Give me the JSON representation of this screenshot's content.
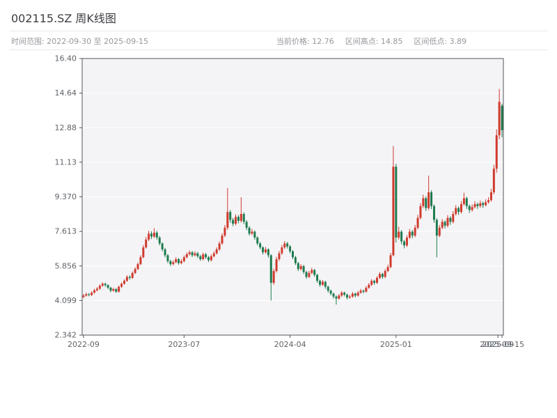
{
  "header": {
    "title": "002115.SZ 周K线图",
    "time_range": "时间范围: 2022-09-30 至 2025-09-15",
    "stats": [
      "当前价格: 12.76",
      "区间高点: 14.85",
      "区间低点: 3.89"
    ],
    "current_price": 12.76,
    "range_high": 14.85,
    "range_low": 3.89
  },
  "chart_data": {
    "type": "candlestick",
    "symbol": "002115.SZ",
    "interval": "weekly",
    "title": "002115.SZ 周K线图",
    "time_range": [
      "2022-09-30",
      "2025-09-15"
    ],
    "ylim": [
      2.342,
      16.4
    ],
    "y_ticks": [
      "16.40",
      "14.64",
      "12.88",
      "11.13",
      "9.370",
      "7.613",
      "5.856",
      "4.099",
      "2.342"
    ],
    "y_tick_values": [
      16.4,
      14.64,
      12.88,
      11.13,
      9.37,
      7.613,
      5.856,
      4.099,
      2.342
    ],
    "x_ticks": [
      {
        "label": "2022-09",
        "index": 0
      },
      {
        "label": "2023-07",
        "index": 37
      },
      {
        "label": "2024-04",
        "index": 76
      },
      {
        "label": "2025-01",
        "index": 115
      },
      {
        "label": "2025-09",
        "index": 152.5
      }
    ],
    "end_date_label": {
      "label": "2025-09-15",
      "index": 154
    },
    "grid": true,
    "colors": {
      "up": "#cf3a2d",
      "down": "#1e7b4f"
    },
    "candles": [
      [
        4.28,
        4.43,
        4.22,
        4.35
      ],
      [
        4.35,
        4.5,
        4.3,
        4.42
      ],
      [
        4.42,
        4.48,
        4.31,
        4.38
      ],
      [
        4.38,
        4.57,
        4.33,
        4.5
      ],
      [
        4.5,
        4.7,
        4.45,
        4.62
      ],
      [
        4.62,
        4.78,
        4.56,
        4.7
      ],
      [
        4.7,
        4.92,
        4.64,
        4.85
      ],
      [
        4.85,
        5.03,
        4.8,
        4.95
      ],
      [
        4.95,
        5.01,
        4.8,
        4.88
      ],
      [
        4.88,
        4.93,
        4.68,
        4.75
      ],
      [
        4.75,
        4.8,
        4.52,
        4.6
      ],
      [
        4.6,
        4.75,
        4.55,
        4.68
      ],
      [
        4.68,
        4.73,
        4.48,
        4.55
      ],
      [
        4.55,
        4.87,
        4.5,
        4.8
      ],
      [
        4.8,
        5.02,
        4.74,
        4.95
      ],
      [
        4.95,
        5.18,
        4.9,
        5.1
      ],
      [
        5.1,
        5.38,
        5.05,
        5.3
      ],
      [
        5.3,
        5.38,
        5.16,
        5.25
      ],
      [
        5.25,
        5.58,
        5.2,
        5.5
      ],
      [
        5.5,
        5.79,
        5.44,
        5.7
      ],
      [
        5.7,
        6.04,
        5.65,
        5.95
      ],
      [
        5.95,
        6.4,
        5.9,
        6.3
      ],
      [
        6.3,
        6.92,
        6.25,
        6.8
      ],
      [
        6.8,
        7.33,
        6.74,
        7.2
      ],
      [
        7.2,
        7.65,
        7.12,
        7.5
      ],
      [
        7.5,
        7.62,
        7.22,
        7.35
      ],
      [
        7.35,
        7.78,
        7.28,
        7.55
      ],
      [
        7.55,
        7.64,
        7.18,
        7.3
      ],
      [
        7.3,
        7.38,
        6.9,
        7.0
      ],
      [
        7.0,
        7.06,
        6.6,
        6.7
      ],
      [
        6.7,
        6.77,
        6.3,
        6.4
      ],
      [
        6.4,
        6.46,
        6.0,
        6.1
      ],
      [
        6.1,
        6.17,
        5.85,
        5.95
      ],
      [
        5.95,
        6.14,
        5.88,
        6.05
      ],
      [
        6.05,
        6.3,
        5.99,
        6.2
      ],
      [
        6.2,
        6.26,
        5.92,
        6.0
      ],
      [
        6.0,
        6.2,
        5.94,
        6.1
      ],
      [
        6.1,
        6.39,
        6.04,
        6.3
      ],
      [
        6.3,
        6.54,
        6.24,
        6.45
      ],
      [
        6.45,
        6.65,
        6.39,
        6.55
      ],
      [
        6.55,
        6.62,
        6.31,
        6.4
      ],
      [
        6.4,
        6.6,
        6.34,
        6.5
      ],
      [
        6.5,
        6.57,
        6.26,
        6.35
      ],
      [
        6.35,
        6.42,
        6.11,
        6.2
      ],
      [
        6.2,
        6.53,
        6.14,
        6.45
      ],
      [
        6.45,
        6.52,
        6.21,
        6.3
      ],
      [
        6.3,
        6.36,
        6.06,
        6.15
      ],
      [
        6.15,
        6.44,
        6.09,
        6.35
      ],
      [
        6.35,
        6.6,
        6.29,
        6.5
      ],
      [
        6.5,
        6.8,
        6.44,
        6.7
      ],
      [
        6.7,
        7.1,
        6.63,
        7.0
      ],
      [
        7.0,
        7.52,
        6.93,
        7.4
      ],
      [
        7.4,
        7.94,
        7.32,
        7.8
      ],
      [
        7.8,
        9.82,
        7.7,
        8.6
      ],
      [
        8.6,
        8.7,
        8.05,
        8.2
      ],
      [
        8.2,
        8.3,
        7.88,
        8.0
      ],
      [
        8.0,
        8.48,
        7.92,
        8.35
      ],
      [
        8.35,
        8.44,
        8.02,
        8.15
      ],
      [
        8.15,
        9.35,
        8.06,
        8.5
      ],
      [
        8.5,
        8.58,
        7.98,
        8.1
      ],
      [
        8.1,
        8.18,
        7.68,
        7.8
      ],
      [
        7.8,
        7.88,
        7.4,
        7.5
      ],
      [
        7.5,
        7.74,
        7.42,
        7.6
      ],
      [
        7.6,
        7.66,
        7.18,
        7.3
      ],
      [
        7.3,
        7.37,
        6.9,
        7.0
      ],
      [
        7.0,
        7.08,
        6.7,
        6.8
      ],
      [
        6.8,
        6.86,
        6.44,
        6.55
      ],
      [
        6.55,
        6.82,
        6.48,
        6.7
      ],
      [
        6.7,
        6.76,
        6.28,
        6.4
      ],
      [
        6.4,
        6.45,
        4.1,
        5.0
      ],
      [
        5.0,
        5.72,
        4.9,
        5.6
      ],
      [
        5.6,
        6.32,
        5.52,
        6.2
      ],
      [
        6.2,
        6.62,
        6.12,
        6.5
      ],
      [
        6.5,
        6.92,
        6.42,
        6.8
      ],
      [
        6.8,
        7.12,
        6.72,
        7.0
      ],
      [
        7.0,
        7.08,
        6.74,
        6.85
      ],
      [
        6.85,
        6.92,
        6.5,
        6.6
      ],
      [
        6.6,
        6.66,
        6.2,
        6.3
      ],
      [
        6.3,
        6.37,
        5.9,
        6.0
      ],
      [
        6.0,
        6.06,
        5.6,
        5.7
      ],
      [
        5.7,
        5.95,
        5.63,
        5.85
      ],
      [
        5.85,
        5.91,
        5.45,
        5.55
      ],
      [
        5.55,
        5.61,
        5.2,
        5.3
      ],
      [
        5.3,
        5.6,
        5.24,
        5.5
      ],
      [
        5.5,
        5.76,
        5.44,
        5.65
      ],
      [
        5.65,
        5.71,
        5.3,
        5.4
      ],
      [
        5.4,
        5.46,
        5.0,
        5.1
      ],
      [
        5.1,
        5.16,
        4.8,
        4.9
      ],
      [
        4.9,
        5.14,
        4.84,
        5.05
      ],
      [
        5.05,
        5.1,
        4.7,
        4.8
      ],
      [
        4.8,
        4.85,
        4.5,
        4.6
      ],
      [
        4.6,
        4.66,
        4.36,
        4.45
      ],
      [
        4.45,
        4.5,
        4.2,
        4.3
      ],
      [
        4.3,
        4.36,
        3.89,
        4.2
      ],
      [
        4.2,
        4.43,
        4.14,
        4.35
      ],
      [
        4.35,
        4.58,
        4.29,
        4.5
      ],
      [
        4.5,
        4.55,
        4.31,
        4.4
      ],
      [
        4.4,
        4.45,
        4.16,
        4.25
      ],
      [
        4.25,
        4.39,
        4.19,
        4.3
      ],
      [
        4.3,
        4.53,
        4.24,
        4.45
      ],
      [
        4.45,
        4.5,
        4.26,
        4.35
      ],
      [
        4.35,
        4.58,
        4.3,
        4.5
      ],
      [
        4.5,
        4.69,
        4.44,
        4.6
      ],
      [
        4.6,
        4.66,
        4.46,
        4.55
      ],
      [
        4.55,
        4.83,
        4.5,
        4.75
      ],
      [
        4.75,
        4.99,
        4.69,
        4.9
      ],
      [
        4.9,
        5.19,
        4.84,
        5.1
      ],
      [
        5.1,
        5.16,
        4.9,
        5.0
      ],
      [
        5.0,
        5.34,
        4.94,
        5.25
      ],
      [
        5.25,
        5.55,
        5.19,
        5.45
      ],
      [
        5.45,
        5.51,
        5.2,
        5.3
      ],
      [
        5.3,
        5.7,
        5.24,
        5.6
      ],
      [
        5.6,
        5.92,
        5.54,
        5.8
      ],
      [
        5.8,
        6.52,
        5.74,
        6.4
      ],
      [
        6.4,
        11.95,
        6.35,
        10.9
      ],
      [
        10.9,
        11.05,
        7.05,
        7.3
      ],
      [
        7.3,
        7.85,
        7.2,
        7.6
      ],
      [
        7.6,
        7.68,
        6.95,
        7.1
      ],
      [
        7.1,
        7.18,
        6.75,
        6.9
      ],
      [
        6.9,
        7.42,
        6.82,
        7.3
      ],
      [
        7.3,
        7.74,
        7.22,
        7.6
      ],
      [
        7.6,
        7.68,
        7.26,
        7.4
      ],
      [
        7.4,
        7.94,
        7.32,
        7.8
      ],
      [
        7.8,
        8.45,
        7.72,
        8.3
      ],
      [
        8.3,
        9.05,
        8.22,
        8.9
      ],
      [
        8.9,
        9.48,
        8.8,
        9.3
      ],
      [
        9.3,
        9.4,
        8.65,
        8.8
      ],
      [
        8.8,
        10.45,
        8.7,
        9.6
      ],
      [
        9.6,
        9.7,
        8.75,
        8.9
      ],
      [
        8.9,
        8.98,
        8.05,
        8.2
      ],
      [
        8.2,
        8.28,
        6.3,
        7.4
      ],
      [
        7.4,
        7.94,
        7.32,
        7.8
      ],
      [
        7.8,
        8.24,
        7.72,
        8.1
      ],
      [
        8.1,
        8.18,
        7.76,
        7.9
      ],
      [
        7.9,
        8.44,
        7.82,
        8.3
      ],
      [
        8.3,
        8.38,
        7.95,
        8.1
      ],
      [
        8.1,
        8.64,
        8.02,
        8.5
      ],
      [
        8.5,
        8.95,
        8.42,
        8.8
      ],
      [
        8.8,
        8.88,
        8.45,
        8.6
      ],
      [
        8.6,
        9.15,
        8.52,
        9.0
      ],
      [
        9.0,
        9.58,
        8.92,
        9.3
      ],
      [
        9.3,
        9.38,
        8.76,
        8.9
      ],
      [
        8.9,
        8.98,
        8.55,
        8.7
      ],
      [
        8.7,
        8.98,
        8.62,
        8.85
      ],
      [
        8.85,
        9.14,
        8.78,
        9.0
      ],
      [
        9.0,
        9.08,
        8.76,
        8.9
      ],
      [
        8.9,
        9.18,
        8.82,
        9.05
      ],
      [
        9.05,
        9.13,
        8.8,
        8.95
      ],
      [
        8.95,
        9.24,
        8.88,
        9.1
      ],
      [
        9.1,
        9.35,
        9.02,
        9.2
      ],
      [
        9.2,
        9.78,
        9.12,
        9.6
      ],
      [
        9.6,
        11.0,
        9.5,
        10.8
      ],
      [
        10.8,
        12.8,
        10.6,
        12.5
      ],
      [
        12.5,
        14.85,
        12.3,
        14.2
      ],
      [
        14.0,
        14.1,
        12.4,
        12.76
      ]
    ]
  }
}
